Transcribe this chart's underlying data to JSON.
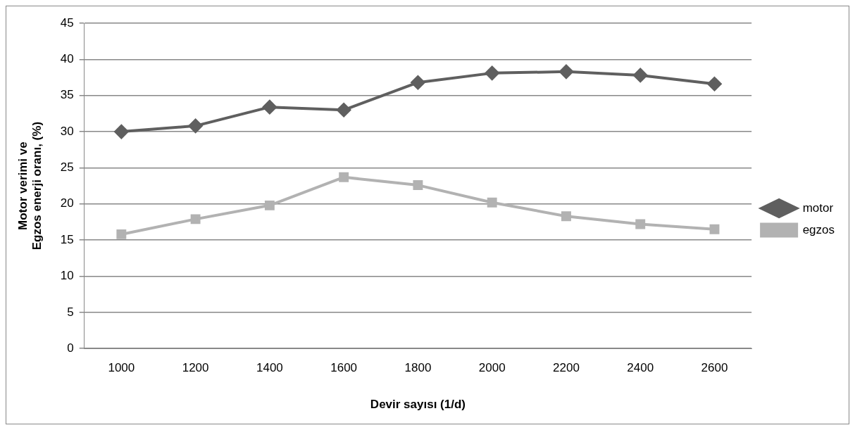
{
  "chart_data": {
    "type": "line",
    "xlabel": "Devir sayısı (1/d)",
    "ylabel": "Motor verimi ve\nEgzos enerji oranı, (%)",
    "categories": [
      "1000",
      "1200",
      "1400",
      "1600",
      "1800",
      "2000",
      "2200",
      "2400",
      "2600"
    ],
    "series": [
      {
        "name": "motor",
        "color": "#5f5f5f",
        "marker": "diamond",
        "values": [
          30.0,
          30.8,
          33.4,
          33.0,
          36.8,
          38.1,
          38.3,
          37.8,
          36.6
        ]
      },
      {
        "name": "egzos",
        "color": "#b2b2b2",
        "marker": "square",
        "values": [
          15.8,
          17.9,
          19.8,
          23.7,
          22.6,
          20.2,
          18.3,
          17.2,
          16.5
        ]
      }
    ],
    "ylim": [
      0,
      45
    ],
    "yticks": [
      0,
      5,
      10,
      15,
      20,
      25,
      30,
      35,
      40,
      45
    ],
    "grid": "y",
    "legend": "right"
  }
}
